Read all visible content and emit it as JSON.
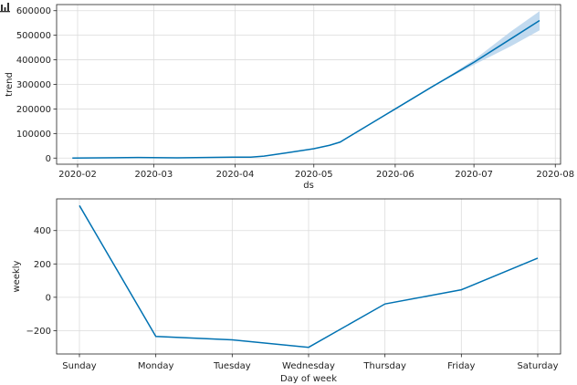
{
  "toolbar": {
    "icon": "bar-chart-icon"
  },
  "colors": {
    "line": "#0072b2",
    "band": "#b7d3ec",
    "grid": "#dcdcdc",
    "axis": "#222222"
  },
  "chart_data": [
    {
      "type": "line",
      "name": "trend",
      "xlabel": "ds",
      "ylabel": "trend",
      "x_axis": "date",
      "xlim": [
        "2020-01-24",
        "2020-08-03"
      ],
      "ylim": [
        -25000,
        625000
      ],
      "grid": true,
      "xticks": [
        "2020-02-01",
        "2020-03-01",
        "2020-04-01",
        "2020-05-01",
        "2020-06-01",
        "2020-07-01",
        "2020-08-01"
      ],
      "xtick_labels": [
        "2020-02",
        "2020-03",
        "2020-04",
        "2020-05",
        "2020-06",
        "2020-07",
        "2020-08"
      ],
      "yticks": [
        0,
        100000,
        200000,
        300000,
        400000,
        500000,
        600000
      ],
      "ytick_labels": [
        "0",
        "100000",
        "200000",
        "300000",
        "400000",
        "500000",
        "600000"
      ],
      "series": [
        {
          "x": [
            "2020-01-30",
            "2020-02-24",
            "2020-03-10",
            "2020-04-01",
            "2020-04-07",
            "2020-04-12",
            "2020-04-21",
            "2020-05-01",
            "2020-05-07",
            "2020-05-11",
            "2020-06-01",
            "2020-06-15",
            "2020-07-01",
            "2020-07-15",
            "2020-07-26"
          ],
          "y": [
            0,
            2500,
            1000,
            4000,
            4000,
            8000,
            22000,
            38000,
            52000,
            65000,
            200000,
            290000,
            390000,
            485000,
            560000
          ],
          "upper": [
            0,
            2500,
            1000,
            4000,
            4000,
            8000,
            22000,
            38000,
            52000,
            65000,
            200000,
            290000,
            400000,
            515000,
            598000
          ],
          "lower": [
            0,
            2500,
            1000,
            4000,
            4000,
            8000,
            22000,
            38000,
            52000,
            65000,
            200000,
            290000,
            380000,
            455000,
            520000
          ]
        }
      ]
    },
    {
      "type": "line",
      "name": "weekly",
      "xlabel": "Day of week",
      "ylabel": "weekly",
      "categories": [
        "Sunday",
        "Monday",
        "Tuesday",
        "Wednesday",
        "Thursday",
        "Friday",
        "Saturday"
      ],
      "values": [
        550,
        -235,
        -255,
        -300,
        -40,
        45,
        235
      ],
      "ylim": [
        -340,
        590
      ],
      "grid": true,
      "yticks": [
        -200,
        0,
        200,
        400
      ],
      "ytick_labels": [
        "−200",
        "0",
        "200",
        "400"
      ]
    }
  ]
}
